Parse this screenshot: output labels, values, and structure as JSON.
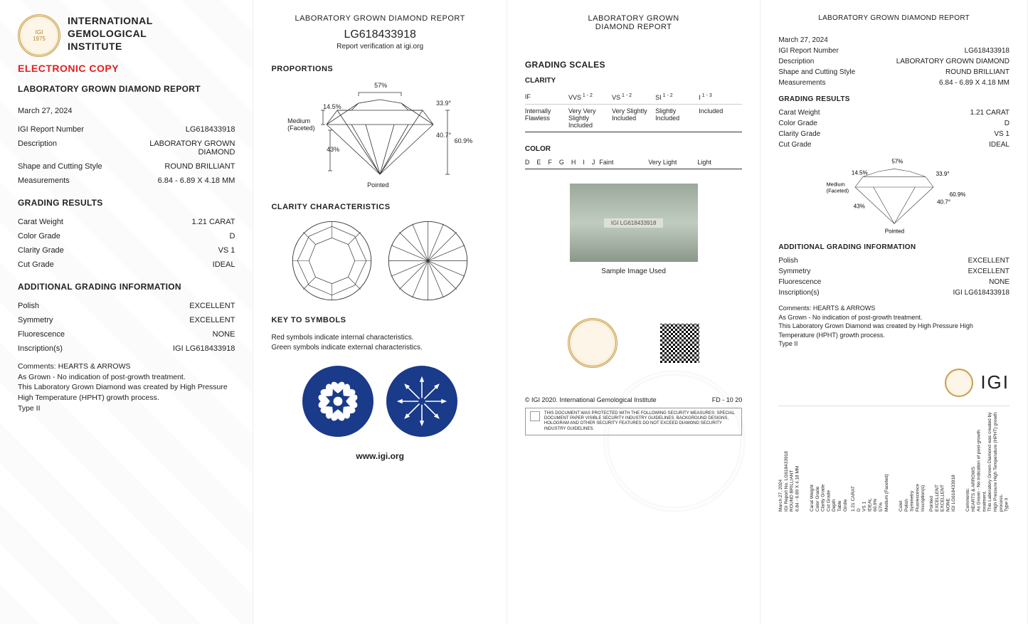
{
  "institute": {
    "line1": "INTERNATIONAL",
    "line2": "GEMOLOGICAL",
    "line3": "INSTITUTE",
    "short": "IGI",
    "seal_year": "1975"
  },
  "electronic_copy": "ELECTRONIC COPY",
  "report_title": "LABORATORY GROWN DIAMOND REPORT",
  "report_title_short": "LABORATORY GROWN\nDIAMOND REPORT",
  "date": "March 27, 2024",
  "report_number_label": "IGI Report Number",
  "report_number": "LG618433918",
  "verification_text": "Report verification at igi.org",
  "fields": {
    "description": {
      "label": "Description",
      "value": "LABORATORY GROWN DIAMOND"
    },
    "shape": {
      "label": "Shape and Cutting Style",
      "value": "ROUND BRILLIANT"
    },
    "measurements": {
      "label": "Measurements",
      "value": "6.84 - 6.89 X 4.18 MM"
    }
  },
  "grading_results_head": "GRADING RESULTS",
  "grading": {
    "carat": {
      "label": "Carat Weight",
      "value": "1.21 CARAT"
    },
    "color": {
      "label": "Color Grade",
      "value": "D"
    },
    "clarity": {
      "label": "Clarity Grade",
      "value": "VS 1"
    },
    "cut": {
      "label": "Cut Grade",
      "value": "IDEAL"
    }
  },
  "additional_head": "ADDITIONAL GRADING INFORMATION",
  "additional": {
    "polish": {
      "label": "Polish",
      "value": "EXCELLENT"
    },
    "symmetry": {
      "label": "Symmetry",
      "value": "EXCELLENT"
    },
    "fluorescence": {
      "label": "Fluorescence",
      "value": "NONE"
    },
    "inscription": {
      "label": "Inscription(s)",
      "value": "IGI LG618433918"
    }
  },
  "comments_label": "Comments:",
  "comments_title": "HEARTS & ARROWS",
  "comments_body": "As Grown - No indication of post-growth treatment.\nThis Laboratory Grown Diamond was created by High Pressure High Temperature (HPHT) growth process.\nType II",
  "proportions": {
    "head": "PROPORTIONS",
    "table_pct": "57%",
    "crown_angle": "33.9°",
    "pavilion_angle": "40.7°",
    "total_depth": "60.9%",
    "crown_height": "14.5%",
    "pavilion_depth": "43%",
    "girdle": "Medium\n(Faceted)",
    "culet": "Pointed"
  },
  "clarity_char_head": "CLARITY CHARACTERISTICS",
  "key_head": "KEY TO SYMBOLS",
  "key_text1": "Red symbols indicate internal characteristics.",
  "key_text2": "Green symbols indicate external characteristics.",
  "website": "www.igi.org",
  "grading_scales_head": "GRADING SCALES",
  "clarity_scale": {
    "head": "CLARITY",
    "grades": [
      {
        "code": "IF",
        "desc": "Internally Flawless"
      },
      {
        "code": "VVS",
        "sup": "1 - 2",
        "desc": "Very Very Slightly Included"
      },
      {
        "code": "VS",
        "sup": "1 - 2",
        "desc": "Very Slightly Included"
      },
      {
        "code": "SI",
        "sup": "1 - 2",
        "desc": "Slightly Included"
      },
      {
        "code": "I",
        "sup": "1 - 3",
        "desc": "Included"
      }
    ]
  },
  "color_scale": {
    "head": "COLOR",
    "letters": [
      "D",
      "E",
      "F",
      "G",
      "H",
      "I",
      "J"
    ],
    "descs": [
      "Faint",
      "Very Light",
      "Light"
    ]
  },
  "sample_caption": "Sample Image Used",
  "inscription_on_stone": "IGI LG618433918",
  "copyright": "© IGI 2020. International Gemological Institute",
  "fd_code": "FD - 10 20",
  "disclaimer": "THIS DOCUMENT WAS PROTECTED WITH THE FOLLOWING SECURITY MEASURES: SPECIAL DOCUMENT PAPER VISIBLE SECURITY INDUSTRY GUIDELINES. BACKGROUND DESIGNS, HOLOGRAM AND OTHER SECURITY FEATURES DO NOT EXCEED DIAMOND SECURITY INDUSTRY GUIDELINES.",
  "colors": {
    "red": "#e02020",
    "navy": "#1a3a8a",
    "gold": "#c9a050",
    "text": "#222222",
    "line": "#cccccc"
  },
  "sideways": {
    "col1": [
      "March 27, 2024",
      "IGI Report No. LG618433918",
      "ROUND BRILLIANT",
      "6.84 - 6.89 X 4.18 MM"
    ],
    "col2": [
      "Carat Weight",
      "Color Grade",
      "Clarity Grade",
      "Cut Grade",
      "Depth",
      "Table",
      "Girdle"
    ],
    "col2v": [
      "1.21 CARAT",
      "D",
      "VS 1",
      "IDEAL",
      "60.9%",
      "57%",
      "Medium (Faceted)"
    ],
    "col3": [
      "Culet",
      "Polish",
      "Symmetry",
      "Fluorescence",
      "Inscription(s)"
    ],
    "col3v": [
      "Pointed",
      "EXCELLENT",
      "EXCELLENT",
      "NONE",
      "IGI LG618433918"
    ],
    "col4": [
      "Comments:",
      "HEARTS & ARROWS",
      "As Grown - No indication of post-growth treatment.",
      "This Laboratory Grown Diamond was created by High Pressure High Temperature (HPHT) growth process.",
      "Type II"
    ]
  }
}
